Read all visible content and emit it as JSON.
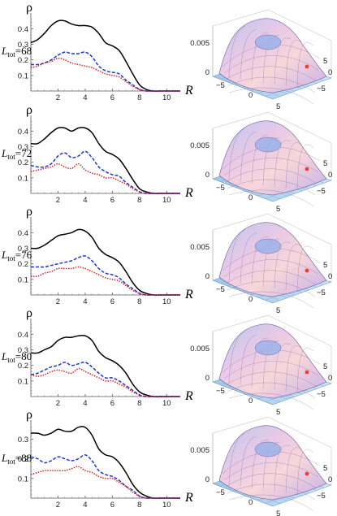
{
  "figure": {
    "rows": [
      {
        "ltot_prefix": "L",
        "ltot_sub": "tot",
        "ltot_value": "=68"
      },
      {
        "ltot_prefix": "L",
        "ltot_sub": "tot",
        "ltot_value": "=72"
      },
      {
        "ltot_prefix": "L",
        "ltot_sub": "tot",
        "ltot_value": "=76"
      },
      {
        "ltot_prefix": "L",
        "ltot_sub": "tot",
        "ltot_value": "=80"
      },
      {
        "ltot_prefix": "L",
        "ltot_sub": "tot",
        "ltot_value": "=88"
      }
    ],
    "surface_tick_labels": {
      "z": "0.005",
      "z_zero": "0",
      "xy": [
        "−5",
        "0",
        "5"
      ]
    }
  },
  "chart_data": [
    {
      "type": "line",
      "ylabel": "ρ",
      "xlabel": "R",
      "xlim": [
        0,
        11
      ],
      "ylim": [
        0,
        0.48
      ],
      "xticks": [
        2,
        4,
        6,
        8,
        10
      ],
      "yticks": [
        0.1,
        0.2,
        0.3,
        0.4
      ],
      "x": [
        0,
        0.5,
        1,
        1.5,
        2,
        2.5,
        3,
        3.5,
        4,
        4.5,
        5,
        5.5,
        6,
        6.5,
        7,
        7.5,
        8,
        8.5,
        9,
        9.5,
        10,
        10.5,
        11
      ],
      "series": [
        {
          "color": "#000000",
          "dash": "solid",
          "values": [
            0.31,
            0.33,
            0.37,
            0.42,
            0.45,
            0.45,
            0.43,
            0.42,
            0.42,
            0.41,
            0.37,
            0.31,
            0.29,
            0.26,
            0.19,
            0.11,
            0.04,
            0.01,
            0.0,
            0.0,
            0.0,
            0.0,
            0.0
          ]
        },
        {
          "color": "#1d34d6",
          "dash": "dashed",
          "values": [
            0.17,
            0.17,
            0.18,
            0.2,
            0.23,
            0.25,
            0.24,
            0.24,
            0.25,
            0.22,
            0.16,
            0.13,
            0.12,
            0.11,
            0.07,
            0.04,
            0.01,
            0.0,
            0.0,
            0.0,
            0.0,
            0.0,
            0.0
          ]
        },
        {
          "color": "#e0151b",
          "dash": "dotted",
          "values": [
            0.15,
            0.16,
            0.18,
            0.19,
            0.21,
            0.2,
            0.18,
            0.17,
            0.16,
            0.15,
            0.13,
            0.11,
            0.1,
            0.09,
            0.06,
            0.03,
            0.01,
            0.0,
            0.0,
            0.0,
            0.0,
            0.0,
            0.0
          ]
        }
      ]
    },
    {
      "type": "line",
      "ylabel": "ρ",
      "xlabel": "R",
      "xlim": [
        0,
        11
      ],
      "ylim": [
        0,
        0.48
      ],
      "xticks": [
        2,
        4,
        6,
        8,
        10
      ],
      "yticks": [
        0.1,
        0.2,
        0.3,
        0.4
      ],
      "x": [
        0,
        0.5,
        1,
        1.5,
        2,
        2.5,
        3,
        3.5,
        4,
        4.5,
        5,
        5.5,
        6,
        6.5,
        7,
        7.5,
        8,
        8.5,
        9,
        9.5,
        10,
        10.5,
        11
      ],
      "series": [
        {
          "color": "#000000",
          "dash": "solid",
          "values": [
            0.32,
            0.32,
            0.35,
            0.39,
            0.42,
            0.42,
            0.4,
            0.42,
            0.42,
            0.39,
            0.32,
            0.27,
            0.25,
            0.22,
            0.16,
            0.09,
            0.03,
            0.01,
            0.0,
            0.0,
            0.0,
            0.0,
            0.0
          ]
        },
        {
          "color": "#1d34d6",
          "dash": "dashed",
          "values": [
            0.18,
            0.17,
            0.17,
            0.19,
            0.24,
            0.26,
            0.23,
            0.24,
            0.27,
            0.23,
            0.17,
            0.14,
            0.12,
            0.11,
            0.07,
            0.04,
            0.01,
            0.0,
            0.0,
            0.0,
            0.0,
            0.0,
            0.0
          ]
        },
        {
          "color": "#e0151b",
          "dash": "dotted",
          "values": [
            0.14,
            0.15,
            0.16,
            0.17,
            0.19,
            0.17,
            0.16,
            0.19,
            0.15,
            0.13,
            0.12,
            0.1,
            0.1,
            0.08,
            0.06,
            0.03,
            0.01,
            0.0,
            0.0,
            0.0,
            0.0,
            0.0,
            0.0
          ]
        }
      ]
    },
    {
      "type": "line",
      "ylabel": "ρ",
      "xlabel": "R",
      "xlim": [
        0,
        11
      ],
      "ylim": [
        0,
        0.48
      ],
      "xticks": [
        2,
        4,
        6,
        8,
        10
      ],
      "yticks": [
        0.1,
        0.2,
        0.3,
        0.4
      ],
      "x": [
        0,
        0.5,
        1,
        1.5,
        2,
        2.5,
        3,
        3.5,
        4,
        4.5,
        5,
        5.5,
        6,
        6.5,
        7,
        7.5,
        8,
        8.5,
        9,
        9.5,
        10,
        10.5,
        11
      ],
      "series": [
        {
          "color": "#000000",
          "dash": "solid",
          "values": [
            0.3,
            0.3,
            0.32,
            0.35,
            0.38,
            0.39,
            0.4,
            0.42,
            0.41,
            0.37,
            0.3,
            0.26,
            0.24,
            0.21,
            0.15,
            0.08,
            0.03,
            0.01,
            0.0,
            0.0,
            0.0,
            0.0,
            0.0
          ]
        },
        {
          "color": "#1d34d6",
          "dash": "dashed",
          "values": [
            0.18,
            0.18,
            0.18,
            0.19,
            0.2,
            0.21,
            0.22,
            0.24,
            0.25,
            0.22,
            0.17,
            0.14,
            0.13,
            0.11,
            0.07,
            0.04,
            0.01,
            0.0,
            0.0,
            0.0,
            0.0,
            0.0,
            0.0
          ]
        },
        {
          "color": "#e0151b",
          "dash": "dotted",
          "values": [
            0.12,
            0.12,
            0.14,
            0.15,
            0.17,
            0.17,
            0.17,
            0.18,
            0.17,
            0.15,
            0.13,
            0.11,
            0.1,
            0.09,
            0.06,
            0.03,
            0.01,
            0.0,
            0.0,
            0.0,
            0.0,
            0.0,
            0.0
          ]
        }
      ]
    },
    {
      "type": "line",
      "ylabel": "ρ",
      "xlabel": "R",
      "xlim": [
        0,
        11
      ],
      "ylim": [
        0,
        0.48
      ],
      "xticks": [
        2,
        4,
        6,
        8,
        10
      ],
      "yticks": [
        0.1,
        0.2,
        0.3,
        0.4
      ],
      "x": [
        0,
        0.5,
        1,
        1.5,
        2,
        2.5,
        3,
        3.5,
        4,
        4.5,
        5,
        5.5,
        6,
        6.5,
        7,
        7.5,
        8,
        8.5,
        9,
        9.5,
        10,
        10.5,
        11
      ],
      "series": [
        {
          "color": "#000000",
          "dash": "solid",
          "values": [
            0.28,
            0.28,
            0.3,
            0.32,
            0.36,
            0.38,
            0.38,
            0.39,
            0.39,
            0.36,
            0.29,
            0.25,
            0.23,
            0.2,
            0.15,
            0.08,
            0.03,
            0.01,
            0.0,
            0.0,
            0.0,
            0.0,
            0.0
          ]
        },
        {
          "color": "#1d34d6",
          "dash": "dashed",
          "values": [
            0.14,
            0.15,
            0.17,
            0.19,
            0.2,
            0.22,
            0.2,
            0.21,
            0.22,
            0.19,
            0.15,
            0.12,
            0.12,
            0.1,
            0.07,
            0.04,
            0.01,
            0.0,
            0.0,
            0.0,
            0.0,
            0.0,
            0.0
          ]
        },
        {
          "color": "#e0151b",
          "dash": "dotted",
          "values": [
            0.14,
            0.13,
            0.14,
            0.16,
            0.17,
            0.16,
            0.15,
            0.18,
            0.16,
            0.14,
            0.12,
            0.1,
            0.1,
            0.08,
            0.06,
            0.03,
            0.01,
            0.0,
            0.0,
            0.0,
            0.0,
            0.0,
            0.0
          ]
        }
      ]
    },
    {
      "type": "line",
      "ylabel": "ρ",
      "xlabel": "R",
      "xlim": [
        0,
        11
      ],
      "ylim": [
        0,
        0.38
      ],
      "xticks": [
        2,
        4,
        6,
        8,
        10
      ],
      "yticks": [
        0.1,
        0.2,
        0.3
      ],
      "x": [
        0,
        0.5,
        1,
        1.5,
        2,
        2.5,
        3,
        3.5,
        4,
        4.5,
        5,
        5.5,
        6,
        6.5,
        7,
        7.5,
        8,
        8.5,
        9,
        9.5,
        10,
        10.5,
        11
      ],
      "series": [
        {
          "color": "#000000",
          "dash": "solid",
          "values": [
            0.33,
            0.33,
            0.32,
            0.33,
            0.35,
            0.34,
            0.34,
            0.36,
            0.36,
            0.32,
            0.25,
            0.22,
            0.21,
            0.18,
            0.13,
            0.07,
            0.03,
            0.01,
            0.0,
            0.0,
            0.0,
            0.0,
            0.0
          ]
        },
        {
          "color": "#1d34d6",
          "dash": "dashed",
          "values": [
            0.21,
            0.2,
            0.18,
            0.19,
            0.21,
            0.2,
            0.19,
            0.2,
            0.22,
            0.19,
            0.14,
            0.12,
            0.11,
            0.09,
            0.06,
            0.04,
            0.01,
            0.0,
            0.0,
            0.0,
            0.0,
            0.0,
            0.0
          ]
        },
        {
          "color": "#e0151b",
          "dash": "dotted",
          "values": [
            0.12,
            0.13,
            0.14,
            0.14,
            0.14,
            0.14,
            0.15,
            0.16,
            0.14,
            0.13,
            0.11,
            0.1,
            0.1,
            0.08,
            0.06,
            0.03,
            0.01,
            0.0,
            0.0,
            0.0,
            0.0,
            0.0,
            0.0
          ]
        }
      ]
    }
  ]
}
